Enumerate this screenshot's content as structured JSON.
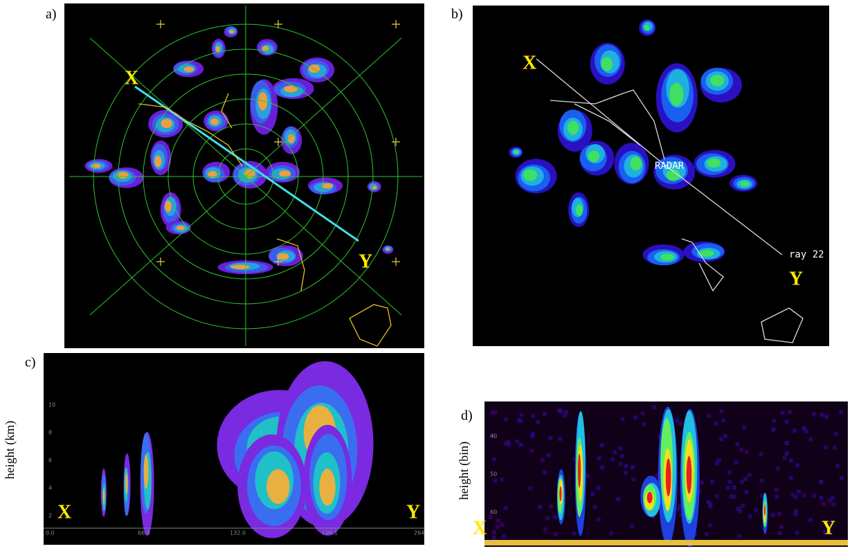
{
  "panels": {
    "a": {
      "label": "a)",
      "x_marker": "X",
      "y_marker": "Y"
    },
    "b": {
      "label": "b)",
      "x_marker": "X",
      "y_marker": "Y",
      "radar_label": "RADAR",
      "ray_label": "ray 22"
    },
    "c": {
      "label": "c)",
      "y_axis_label": "height (km)",
      "x_marker": "X",
      "y_marker": "Y",
      "yticks": [
        "2",
        "4",
        "6",
        "8",
        "10"
      ],
      "xticks": [
        "0.0",
        "66.0",
        "132.0",
        "198.1",
        "264"
      ]
    },
    "d": {
      "label": "d)",
      "y_axis_label": "height (bin)",
      "x_marker": "X",
      "y_marker": "Y",
      "yticks": [
        "40",
        "50",
        "60"
      ]
    }
  }
}
